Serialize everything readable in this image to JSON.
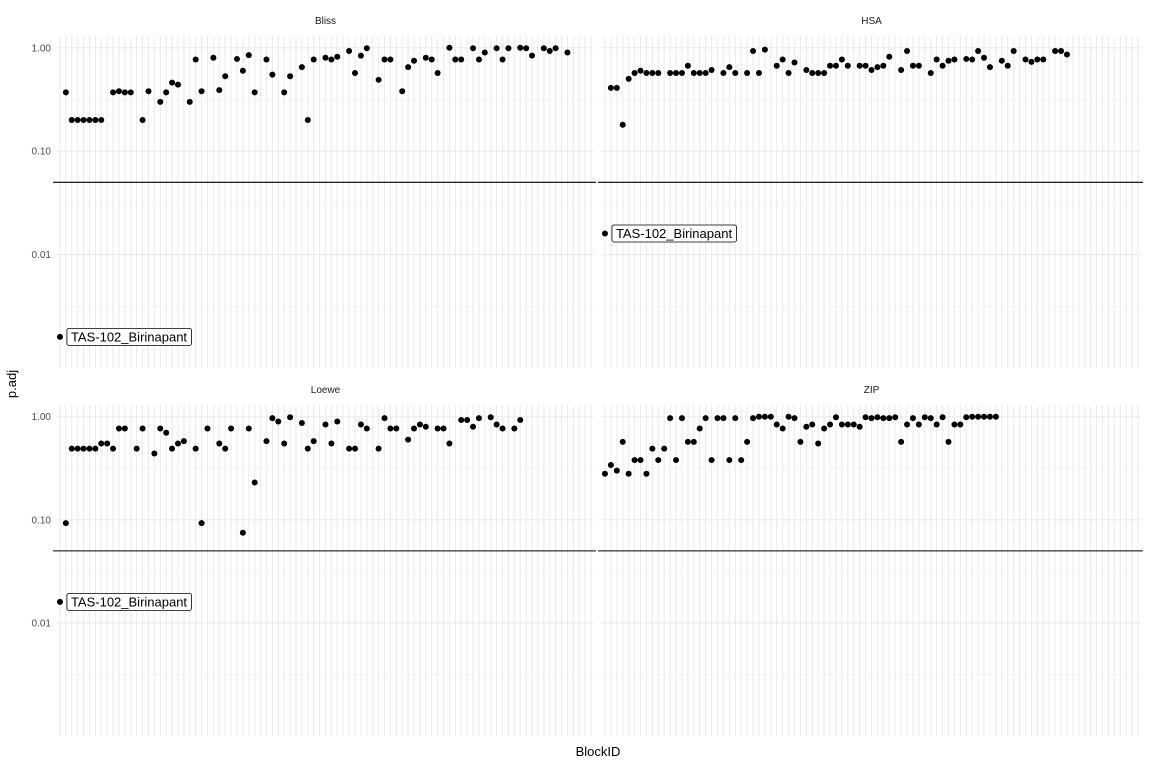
{
  "chart_data": {
    "type": "scatter",
    "layout": "facet_wrap_2x2",
    "xlabel": "BlockID",
    "ylabel": "p.adj",
    "y_scale": "log10",
    "ylim": [
      0.0008,
      1.3
    ],
    "y_ticks": [
      {
        "value": 1.0,
        "label": "1.00"
      },
      {
        "value": 0.1,
        "label": "0.10"
      },
      {
        "value": 0.01,
        "label": "0.01"
      }
    ],
    "reference_line": 0.05,
    "x_tick_labels_shown": false,
    "grid": true,
    "legend": "none",
    "colors": {
      "points": "#000000",
      "grid": "#ebebeb",
      "hline": "#000000"
    },
    "panels": [
      {
        "name": "Bliss",
        "x_count": 91,
        "points": [
          {
            "x": 1,
            "y": 0.0016,
            "label": "TAS-102_Birinapant"
          },
          {
            "x": 2,
            "y": 0.37
          },
          {
            "x": 3,
            "y": 0.2
          },
          {
            "x": 4,
            "y": 0.2
          },
          {
            "x": 5,
            "y": 0.2
          },
          {
            "x": 6,
            "y": 0.2
          },
          {
            "x": 7,
            "y": 0.2
          },
          {
            "x": 8,
            "y": 0.2
          },
          {
            "x": 10,
            "y": 0.37
          },
          {
            "x": 11,
            "y": 0.38
          },
          {
            "x": 12,
            "y": 0.37
          },
          {
            "x": 13,
            "y": 0.37
          },
          {
            "x": 15,
            "y": 0.2
          },
          {
            "x": 16,
            "y": 0.38
          },
          {
            "x": 18,
            "y": 0.3
          },
          {
            "x": 19,
            "y": 0.37
          },
          {
            "x": 20,
            "y": 0.46
          },
          {
            "x": 21,
            "y": 0.44
          },
          {
            "x": 23,
            "y": 0.3
          },
          {
            "x": 24,
            "y": 0.77
          },
          {
            "x": 25,
            "y": 0.38
          },
          {
            "x": 27,
            "y": 0.8
          },
          {
            "x": 28,
            "y": 0.39
          },
          {
            "x": 29,
            "y": 0.53
          },
          {
            "x": 31,
            "y": 0.78
          },
          {
            "x": 32,
            "y": 0.6
          },
          {
            "x": 33,
            "y": 0.85
          },
          {
            "x": 34,
            "y": 0.37
          },
          {
            "x": 36,
            "y": 0.77
          },
          {
            "x": 37,
            "y": 0.55
          },
          {
            "x": 39,
            "y": 0.37
          },
          {
            "x": 40,
            "y": 0.53
          },
          {
            "x": 42,
            "y": 0.65
          },
          {
            "x": 43,
            "y": 0.2
          },
          {
            "x": 44,
            "y": 0.77
          },
          {
            "x": 46,
            "y": 0.8
          },
          {
            "x": 47,
            "y": 0.77
          },
          {
            "x": 48,
            "y": 0.82
          },
          {
            "x": 50,
            "y": 0.93
          },
          {
            "x": 51,
            "y": 0.57
          },
          {
            "x": 52,
            "y": 0.84
          },
          {
            "x": 53,
            "y": 0.99
          },
          {
            "x": 55,
            "y": 0.49
          },
          {
            "x": 56,
            "y": 0.77
          },
          {
            "x": 57,
            "y": 0.77
          },
          {
            "x": 59,
            "y": 0.38
          },
          {
            "x": 60,
            "y": 0.65
          },
          {
            "x": 61,
            "y": 0.75
          },
          {
            "x": 63,
            "y": 0.8
          },
          {
            "x": 64,
            "y": 0.77
          },
          {
            "x": 65,
            "y": 0.57
          },
          {
            "x": 67,
            "y": 1.0
          },
          {
            "x": 68,
            "y": 0.77
          },
          {
            "x": 69,
            "y": 0.77
          },
          {
            "x": 71,
            "y": 0.99
          },
          {
            "x": 72,
            "y": 0.77
          },
          {
            "x": 73,
            "y": 0.9
          },
          {
            "x": 75,
            "y": 0.99
          },
          {
            "x": 76,
            "y": 0.77
          },
          {
            "x": 77,
            "y": 0.99
          },
          {
            "x": 79,
            "y": 1.0
          },
          {
            "x": 80,
            "y": 0.99
          },
          {
            "x": 81,
            "y": 0.84
          },
          {
            "x": 83,
            "y": 0.99
          },
          {
            "x": 84,
            "y": 0.93
          },
          {
            "x": 85,
            "y": 0.99
          },
          {
            "x": 87,
            "y": 0.9
          }
        ]
      },
      {
        "name": "HSA",
        "x_count": 91,
        "points": [
          {
            "x": 1,
            "y": 0.016,
            "label": "TAS-102_Birinapant"
          },
          {
            "x": 2,
            "y": 0.41
          },
          {
            "x": 3,
            "y": 0.41
          },
          {
            "x": 4,
            "y": 0.18
          },
          {
            "x": 5,
            "y": 0.5
          },
          {
            "x": 6,
            "y": 0.57
          },
          {
            "x": 7,
            "y": 0.6
          },
          {
            "x": 8,
            "y": 0.57
          },
          {
            "x": 9,
            "y": 0.57
          },
          {
            "x": 10,
            "y": 0.57
          },
          {
            "x": 12,
            "y": 0.57
          },
          {
            "x": 13,
            "y": 0.57
          },
          {
            "x": 14,
            "y": 0.57
          },
          {
            "x": 15,
            "y": 0.67
          },
          {
            "x": 16,
            "y": 0.57
          },
          {
            "x": 17,
            "y": 0.57
          },
          {
            "x": 18,
            "y": 0.57
          },
          {
            "x": 19,
            "y": 0.61
          },
          {
            "x": 21,
            "y": 0.57
          },
          {
            "x": 22,
            "y": 0.65
          },
          {
            "x": 23,
            "y": 0.57
          },
          {
            "x": 25,
            "y": 0.57
          },
          {
            "x": 26,
            "y": 0.93
          },
          {
            "x": 27,
            "y": 0.57
          },
          {
            "x": 28,
            "y": 0.96
          },
          {
            "x": 30,
            "y": 0.67
          },
          {
            "x": 31,
            "y": 0.77
          },
          {
            "x": 32,
            "y": 0.57
          },
          {
            "x": 33,
            "y": 0.72
          },
          {
            "x": 35,
            "y": 0.61
          },
          {
            "x": 36,
            "y": 0.57
          },
          {
            "x": 37,
            "y": 0.57
          },
          {
            "x": 38,
            "y": 0.57
          },
          {
            "x": 39,
            "y": 0.67
          },
          {
            "x": 40,
            "y": 0.67
          },
          {
            "x": 41,
            "y": 0.77
          },
          {
            "x": 42,
            "y": 0.67
          },
          {
            "x": 44,
            "y": 0.67
          },
          {
            "x": 45,
            "y": 0.67
          },
          {
            "x": 46,
            "y": 0.61
          },
          {
            "x": 47,
            "y": 0.65
          },
          {
            "x": 48,
            "y": 0.67
          },
          {
            "x": 49,
            "y": 0.82
          },
          {
            "x": 51,
            "y": 0.61
          },
          {
            "x": 52,
            "y": 0.93
          },
          {
            "x": 53,
            "y": 0.67
          },
          {
            "x": 54,
            "y": 0.67
          },
          {
            "x": 56,
            "y": 0.57
          },
          {
            "x": 57,
            "y": 0.77
          },
          {
            "x": 58,
            "y": 0.67
          },
          {
            "x": 59,
            "y": 0.75
          },
          {
            "x": 60,
            "y": 0.77
          },
          {
            "x": 62,
            "y": 0.78
          },
          {
            "x": 63,
            "y": 0.77
          },
          {
            "x": 64,
            "y": 0.93
          },
          {
            "x": 65,
            "y": 0.8
          },
          {
            "x": 66,
            "y": 0.65
          },
          {
            "x": 68,
            "y": 0.75
          },
          {
            "x": 69,
            "y": 0.67
          },
          {
            "x": 70,
            "y": 0.93
          },
          {
            "x": 72,
            "y": 0.77
          },
          {
            "x": 73,
            "y": 0.73
          },
          {
            "x": 74,
            "y": 0.77
          },
          {
            "x": 75,
            "y": 0.77
          },
          {
            "x": 77,
            "y": 0.93
          },
          {
            "x": 78,
            "y": 0.93
          },
          {
            "x": 79,
            "y": 0.86
          }
        ]
      },
      {
        "name": "Loewe",
        "x_count": 91,
        "points": [
          {
            "x": 1,
            "y": 0.016,
            "label": "TAS-102_Birinapant"
          },
          {
            "x": 2,
            "y": 0.093
          },
          {
            "x": 3,
            "y": 0.49
          },
          {
            "x": 4,
            "y": 0.49
          },
          {
            "x": 5,
            "y": 0.49
          },
          {
            "x": 6,
            "y": 0.49
          },
          {
            "x": 7,
            "y": 0.49
          },
          {
            "x": 8,
            "y": 0.55
          },
          {
            "x": 9,
            "y": 0.55
          },
          {
            "x": 10,
            "y": 0.49
          },
          {
            "x": 11,
            "y": 0.77
          },
          {
            "x": 12,
            "y": 0.77
          },
          {
            "x": 14,
            "y": 0.49
          },
          {
            "x": 15,
            "y": 0.77
          },
          {
            "x": 17,
            "y": 0.44
          },
          {
            "x": 18,
            "y": 0.77
          },
          {
            "x": 19,
            "y": 0.7
          },
          {
            "x": 20,
            "y": 0.49
          },
          {
            "x": 21,
            "y": 0.55
          },
          {
            "x": 22,
            "y": 0.58
          },
          {
            "x": 24,
            "y": 0.49
          },
          {
            "x": 25,
            "y": 0.093
          },
          {
            "x": 26,
            "y": 0.77
          },
          {
            "x": 28,
            "y": 0.55
          },
          {
            "x": 29,
            "y": 0.49
          },
          {
            "x": 30,
            "y": 0.77
          },
          {
            "x": 32,
            "y": 0.075
          },
          {
            "x": 33,
            "y": 0.77
          },
          {
            "x": 34,
            "y": 0.23
          },
          {
            "x": 36,
            "y": 0.58
          },
          {
            "x": 37,
            "y": 0.97
          },
          {
            "x": 38,
            "y": 0.9
          },
          {
            "x": 39,
            "y": 0.55
          },
          {
            "x": 40,
            "y": 0.99
          },
          {
            "x": 42,
            "y": 0.87
          },
          {
            "x": 43,
            "y": 0.49
          },
          {
            "x": 44,
            "y": 0.58
          },
          {
            "x": 46,
            "y": 0.84
          },
          {
            "x": 47,
            "y": 0.55
          },
          {
            "x": 48,
            "y": 0.9
          },
          {
            "x": 50,
            "y": 0.49
          },
          {
            "x": 51,
            "y": 0.49
          },
          {
            "x": 52,
            "y": 0.84
          },
          {
            "x": 53,
            "y": 0.77
          },
          {
            "x": 55,
            "y": 0.49
          },
          {
            "x": 56,
            "y": 0.97
          },
          {
            "x": 57,
            "y": 0.77
          },
          {
            "x": 58,
            "y": 0.77
          },
          {
            "x": 60,
            "y": 0.6
          },
          {
            "x": 61,
            "y": 0.77
          },
          {
            "x": 62,
            "y": 0.84
          },
          {
            "x": 63,
            "y": 0.8
          },
          {
            "x": 65,
            "y": 0.77
          },
          {
            "x": 66,
            "y": 0.77
          },
          {
            "x": 67,
            "y": 0.55
          },
          {
            "x": 69,
            "y": 0.93
          },
          {
            "x": 70,
            "y": 0.93
          },
          {
            "x": 71,
            "y": 0.8
          },
          {
            "x": 72,
            "y": 0.97
          },
          {
            "x": 74,
            "y": 0.99
          },
          {
            "x": 75,
            "y": 0.84
          },
          {
            "x": 76,
            "y": 0.77
          },
          {
            "x": 78,
            "y": 0.77
          },
          {
            "x": 79,
            "y": 0.93
          }
        ]
      },
      {
        "name": "ZIP",
        "x_count": 91,
        "points": [
          {
            "x": 1,
            "y": 0.28
          },
          {
            "x": 2,
            "y": 0.34
          },
          {
            "x": 3,
            "y": 0.3
          },
          {
            "x": 4,
            "y": 0.57
          },
          {
            "x": 5,
            "y": 0.28
          },
          {
            "x": 6,
            "y": 0.38
          },
          {
            "x": 7,
            "y": 0.38
          },
          {
            "x": 8,
            "y": 0.28
          },
          {
            "x": 9,
            "y": 0.49
          },
          {
            "x": 10,
            "y": 0.38
          },
          {
            "x": 11,
            "y": 0.49
          },
          {
            "x": 12,
            "y": 0.97
          },
          {
            "x": 13,
            "y": 0.38
          },
          {
            "x": 14,
            "y": 0.97
          },
          {
            "x": 15,
            "y": 0.57
          },
          {
            "x": 16,
            "y": 0.57
          },
          {
            "x": 17,
            "y": 0.77
          },
          {
            "x": 18,
            "y": 0.97
          },
          {
            "x": 19,
            "y": 0.38
          },
          {
            "x": 20,
            "y": 0.97
          },
          {
            "x": 21,
            "y": 0.97
          },
          {
            "x": 22,
            "y": 0.38
          },
          {
            "x": 23,
            "y": 0.97
          },
          {
            "x": 24,
            "y": 0.38
          },
          {
            "x": 25,
            "y": 0.57
          },
          {
            "x": 26,
            "y": 0.97
          },
          {
            "x": 27,
            "y": 1.0
          },
          {
            "x": 28,
            "y": 1.0
          },
          {
            "x": 29,
            "y": 1.0
          },
          {
            "x": 30,
            "y": 0.84
          },
          {
            "x": 31,
            "y": 0.77
          },
          {
            "x": 32,
            "y": 1.0
          },
          {
            "x": 33,
            "y": 0.97
          },
          {
            "x": 34,
            "y": 0.57
          },
          {
            "x": 35,
            "y": 0.8
          },
          {
            "x": 36,
            "y": 0.84
          },
          {
            "x": 37,
            "y": 0.55
          },
          {
            "x": 38,
            "y": 0.77
          },
          {
            "x": 39,
            "y": 0.84
          },
          {
            "x": 40,
            "y": 0.99
          },
          {
            "x": 41,
            "y": 0.84
          },
          {
            "x": 42,
            "y": 0.84
          },
          {
            "x": 43,
            "y": 0.84
          },
          {
            "x": 44,
            "y": 0.8
          },
          {
            "x": 45,
            "y": 0.99
          },
          {
            "x": 46,
            "y": 0.97
          },
          {
            "x": 47,
            "y": 0.99
          },
          {
            "x": 48,
            "y": 0.97
          },
          {
            "x": 49,
            "y": 0.97
          },
          {
            "x": 50,
            "y": 0.99
          },
          {
            "x": 51,
            "y": 0.57
          },
          {
            "x": 52,
            "y": 0.84
          },
          {
            "x": 53,
            "y": 0.97
          },
          {
            "x": 54,
            "y": 0.84
          },
          {
            "x": 55,
            "y": 0.99
          },
          {
            "x": 56,
            "y": 0.97
          },
          {
            "x": 57,
            "y": 0.84
          },
          {
            "x": 58,
            "y": 0.99
          },
          {
            "x": 59,
            "y": 0.57
          },
          {
            "x": 60,
            "y": 0.84
          },
          {
            "x": 61,
            "y": 0.84
          },
          {
            "x": 62,
            "y": 0.99
          },
          {
            "x": 63,
            "y": 1.0
          },
          {
            "x": 64,
            "y": 1.0
          },
          {
            "x": 65,
            "y": 1.0
          },
          {
            "x": 66,
            "y": 1.0
          },
          {
            "x": 67,
            "y": 1.0
          }
        ]
      }
    ]
  }
}
